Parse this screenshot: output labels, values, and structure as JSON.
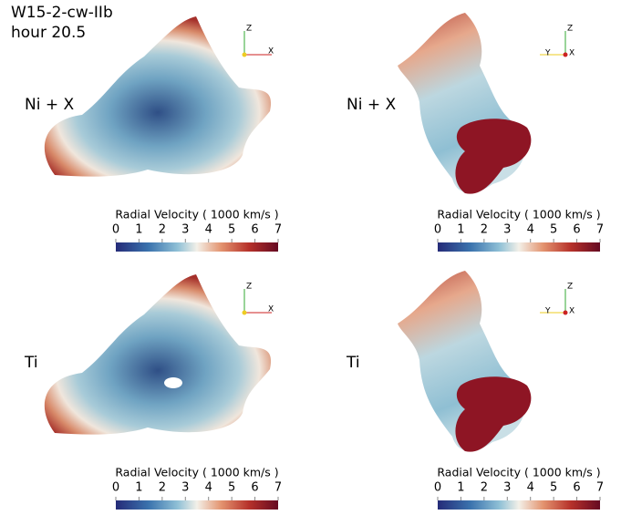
{
  "title": "W15-2-cw-IIb",
  "subtitle": "hour 20.5",
  "panels": [
    {
      "label": "Ni + X",
      "axes": [
        "Z",
        "X"
      ],
      "colorbar": {
        "title": "Radial Velocity ( 1000 km/s )",
        "ticks": [
          0,
          1,
          2,
          3,
          4,
          5,
          6,
          7
        ]
      }
    },
    {
      "label": "Ni + X",
      "axes": [
        "Z",
        "Y",
        "X"
      ],
      "colorbar": {
        "title": "Radial Velocity ( 1000 km/s )",
        "ticks": [
          0,
          1,
          2,
          3,
          4,
          5,
          6,
          7
        ]
      }
    },
    {
      "label": "Ti",
      "axes": [
        "Z",
        "X"
      ],
      "colorbar": {
        "title": "Radial Velocity ( 1000 km/s )",
        "ticks": [
          0,
          1,
          2,
          3,
          4,
          5,
          6,
          7
        ]
      }
    },
    {
      "label": "Ti",
      "axes": [
        "Z",
        "Y",
        "X"
      ],
      "colorbar": {
        "title": "Radial Velocity ( 1000 km/s )",
        "ticks": [
          0,
          1,
          2,
          3,
          4,
          5,
          6,
          7
        ]
      }
    }
  ]
}
